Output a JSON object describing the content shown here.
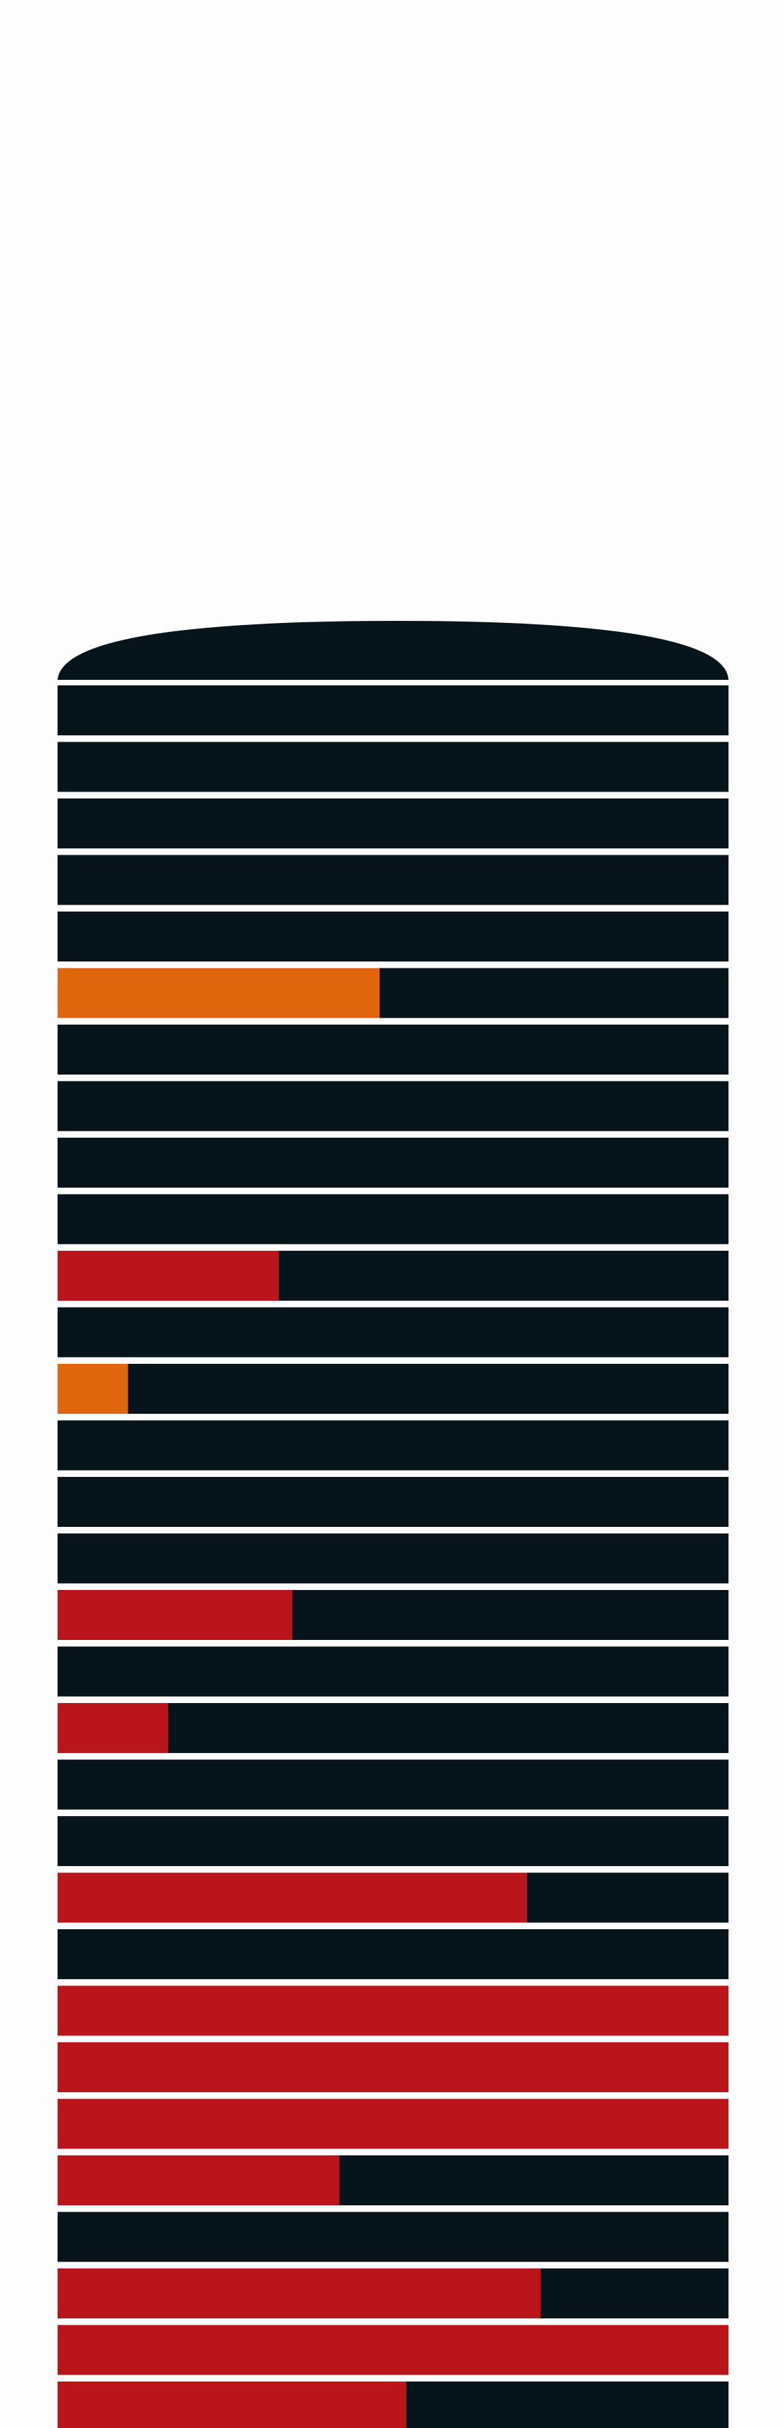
{
  "colors": {
    "background": "#fdfdfd",
    "track": "#06141b",
    "separator": "#e9eaf0",
    "red": "#bb151c",
    "orange": "#e0650d"
  },
  "chart_data": {
    "type": "bar",
    "orientation": "horizontal",
    "stacked": false,
    "title": "",
    "xlabel": "",
    "ylabel": "",
    "xlim": [
      0,
      1
    ],
    "grid": false,
    "legend": "none",
    "rounded_top_cap": true,
    "rows": [
      {
        "value": 0,
        "color": "track"
      },
      {
        "value": 0,
        "color": "track"
      },
      {
        "value": 0,
        "color": "track"
      },
      {
        "value": 0,
        "color": "track"
      },
      {
        "value": 0,
        "color": "track"
      },
      {
        "value": 0.48,
        "color": "orange"
      },
      {
        "value": 0,
        "color": "track"
      },
      {
        "value": 0,
        "color": "track"
      },
      {
        "value": 0,
        "color": "track"
      },
      {
        "value": 0,
        "color": "track"
      },
      {
        "value": 0.33,
        "color": "red"
      },
      {
        "value": 0,
        "color": "track"
      },
      {
        "value": 0.105,
        "color": "orange"
      },
      {
        "value": 0,
        "color": "track"
      },
      {
        "value": 0,
        "color": "track"
      },
      {
        "value": 0,
        "color": "track"
      },
      {
        "value": 0.35,
        "color": "red"
      },
      {
        "value": 0,
        "color": "track"
      },
      {
        "value": 0.165,
        "color": "red"
      },
      {
        "value": 0,
        "color": "track"
      },
      {
        "value": 0,
        "color": "track"
      },
      {
        "value": 0.7,
        "color": "red"
      },
      {
        "value": 0,
        "color": "track"
      },
      {
        "value": 1,
        "color": "red"
      },
      {
        "value": 1,
        "color": "red"
      },
      {
        "value": 1,
        "color": "red"
      },
      {
        "value": 0.42,
        "color": "red"
      },
      {
        "value": 0,
        "color": "track"
      },
      {
        "value": 0.72,
        "color": "red"
      },
      {
        "value": 1,
        "color": "red"
      },
      {
        "value": 0.52,
        "color": "red"
      }
    ]
  }
}
